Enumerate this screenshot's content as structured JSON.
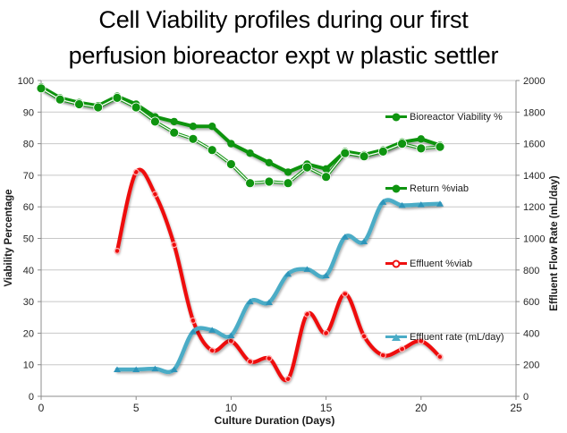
{
  "title": {
    "line1": "Cell Viability profiles during our first",
    "line2": "perfusion bioreactor expt w plastic settler"
  },
  "chart_data": {
    "type": "line",
    "title": "Cell Viability profiles during our first perfusion bioreactor expt w plastic settler",
    "xlabel": "Culture Duration (Days)",
    "ylabel_left": "Viability Percentage",
    "ylabel_right": "Effluent Flow Rate (mL/day)",
    "xlim": [
      0,
      25
    ],
    "ylim_left": [
      0,
      100
    ],
    "ylim_right": [
      0,
      2000
    ],
    "x_ticks": [
      0,
      5,
      10,
      15,
      20,
      25
    ],
    "y_ticks_left": [
      0,
      10,
      20,
      30,
      40,
      50,
      60,
      70,
      80,
      90,
      100
    ],
    "y_ticks_right": [
      0,
      200,
      400,
      600,
      800,
      1000,
      1200,
      1400,
      1600,
      1800,
      2000
    ],
    "grid": "horizontal",
    "legend_position": "floating-right-inside-plot",
    "series": [
      {
        "name": "Bioreactor Viability %",
        "axis": "left",
        "color": "#0F9410",
        "marker": "circle",
        "smooth": false,
        "x": [
          0,
          1,
          2,
          3,
          4,
          5,
          6,
          7,
          8,
          9,
          10,
          11,
          12,
          13,
          14,
          15,
          16,
          17,
          18,
          19,
          20,
          21
        ],
        "values": [
          98,
          94.5,
          93,
          92,
          95,
          92.5,
          88.5,
          87,
          85.5,
          85.5,
          80,
          77,
          74,
          71,
          73.5,
          72,
          77.5,
          76.5,
          78,
          80.5,
          81.5,
          79.5
        ]
      },
      {
        "name": "Return %viab",
        "axis": "left",
        "color": "#0F9410",
        "marker": "circle-outlined",
        "smooth": false,
        "x": [
          0,
          1,
          2,
          3,
          4,
          5,
          6,
          7,
          8,
          9,
          10,
          11,
          12,
          13,
          14,
          15,
          16,
          17,
          18,
          19,
          20,
          21
        ],
        "values": [
          97.5,
          94,
          92.5,
          91.5,
          94.5,
          91.5,
          87,
          83.5,
          81.5,
          78,
          73.5,
          67.5,
          68,
          67.5,
          72.5,
          69.5,
          77,
          76,
          77.5,
          80,
          78.5,
          79
        ]
      },
      {
        "name": "Effluent %viab",
        "axis": "left",
        "color": "#EE1111",
        "marker": "open-circle",
        "smooth": true,
        "x": [
          4,
          5,
          6,
          7,
          8,
          9,
          10,
          11,
          12,
          13,
          14,
          15,
          16,
          17,
          18,
          19,
          20,
          21
        ],
        "values": [
          46,
          71,
          64,
          48,
          24,
          14.5,
          17.5,
          11,
          12,
          5.5,
          26,
          20,
          32.5,
          19,
          13,
          15,
          17.5,
          12.5
        ]
      },
      {
        "name": "Effluent rate (mL/day)",
        "axis": "right",
        "color": "#4BACC6",
        "marker": "triangle",
        "smooth": true,
        "x": [
          4,
          5,
          6,
          7,
          8,
          9,
          10,
          11,
          12,
          13,
          14,
          15,
          16,
          17,
          18,
          19,
          20,
          21
        ],
        "values": [
          170,
          170,
          175,
          170,
          410,
          420,
          385,
          600,
          595,
          775,
          805,
          765,
          1010,
          980,
          1230,
          1210,
          1215,
          1220
        ]
      }
    ],
    "colors": {
      "gridline": "#C8C8C8",
      "axis_line": "#8C8C8C",
      "tick_label": "#262626",
      "background": "#FFFFFF"
    }
  }
}
